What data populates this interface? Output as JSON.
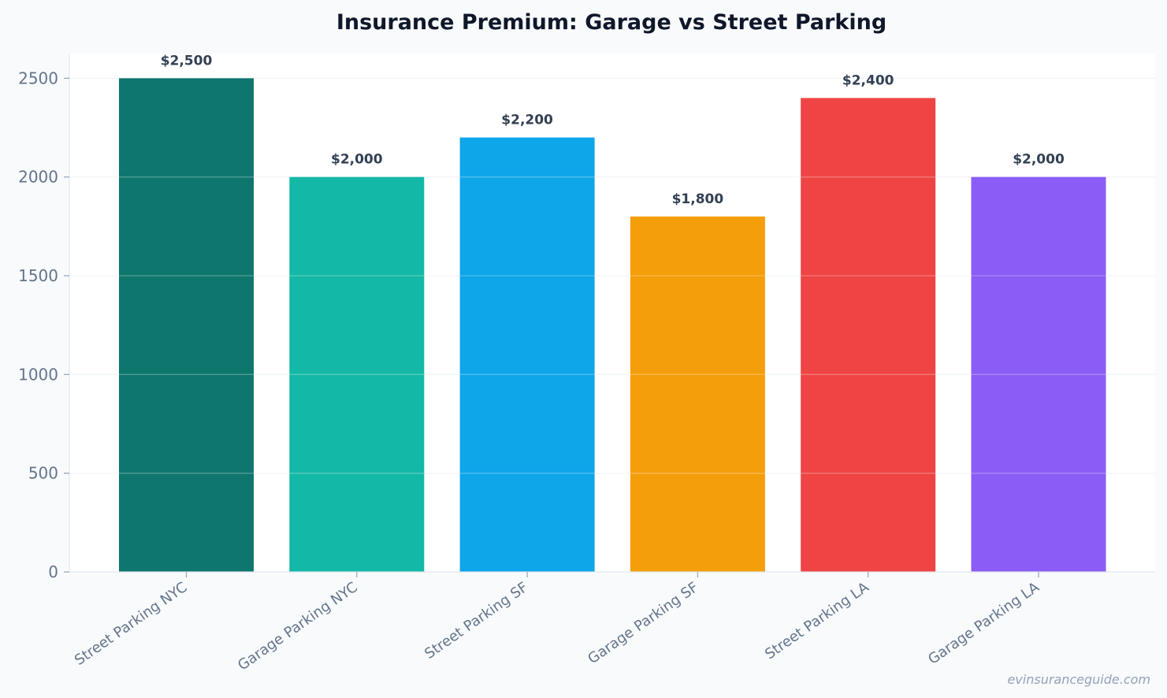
{
  "chart_data": {
    "type": "bar",
    "title": "Insurance Premium: Garage vs Street Parking",
    "xlabel": "",
    "ylabel": "",
    "categories": [
      "Street Parking NYC",
      "Garage Parking NYC",
      "Street Parking SF",
      "Garage Parking SF",
      "Street Parking LA",
      "Garage Parking LA"
    ],
    "values": [
      2500,
      2000,
      2200,
      1800,
      2400,
      2000
    ],
    "data_labels": [
      "$2,500",
      "$2,000",
      "$2,200",
      "$1,800",
      "$2,400",
      "$2,000"
    ],
    "bar_colors": [
      "#0f766e",
      "#14b8a6",
      "#0ea5e9",
      "#f59e0b",
      "#ef4444",
      "#8b5cf6"
    ],
    "ylim": [
      0,
      2625
    ],
    "yticks": [
      0,
      500,
      1000,
      1500,
      2000,
      2500
    ],
    "ytick_labels": [
      "0",
      "500",
      "1000",
      "1500",
      "2000",
      "2500"
    ],
    "grid": true,
    "legend": "none"
  },
  "watermark": "evinsuranceguide.com"
}
